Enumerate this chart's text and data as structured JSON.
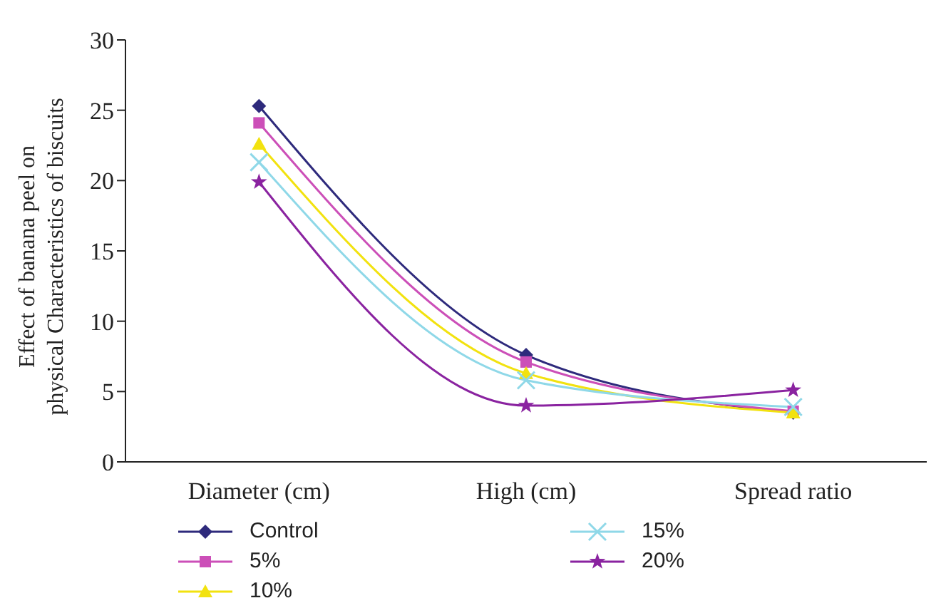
{
  "chart_data": {
    "type": "line",
    "ylabel": "Effect of banana peel on physical Characteristics of biscuits",
    "categories": [
      "Diameter (cm)",
      "High (cm)",
      "Spread ratio"
    ],
    "series": [
      {
        "name": "Control",
        "color": "#2e2a7c",
        "marker": "diamond",
        "values": [
          25.3,
          7.6,
          3.5
        ]
      },
      {
        "name": "5%",
        "color": "#cc4fb8",
        "marker": "square",
        "values": [
          24.1,
          7.1,
          3.6
        ]
      },
      {
        "name": "10%",
        "color": "#f2e20f",
        "marker": "triangle",
        "values": [
          22.6,
          6.3,
          3.5
        ]
      },
      {
        "name": "15%",
        "color": "#8fd8e8",
        "marker": "cross",
        "values": [
          21.3,
          5.8,
          3.9
        ]
      },
      {
        "name": "20%",
        "color": "#8a23a0",
        "marker": "star",
        "values": [
          19.9,
          4.0,
          5.1
        ]
      }
    ],
    "ylim": [
      0,
      30
    ],
    "yticks": [
      0,
      5,
      10,
      15,
      20,
      25,
      30
    ],
    "grid": false,
    "legend": "bottom"
  }
}
